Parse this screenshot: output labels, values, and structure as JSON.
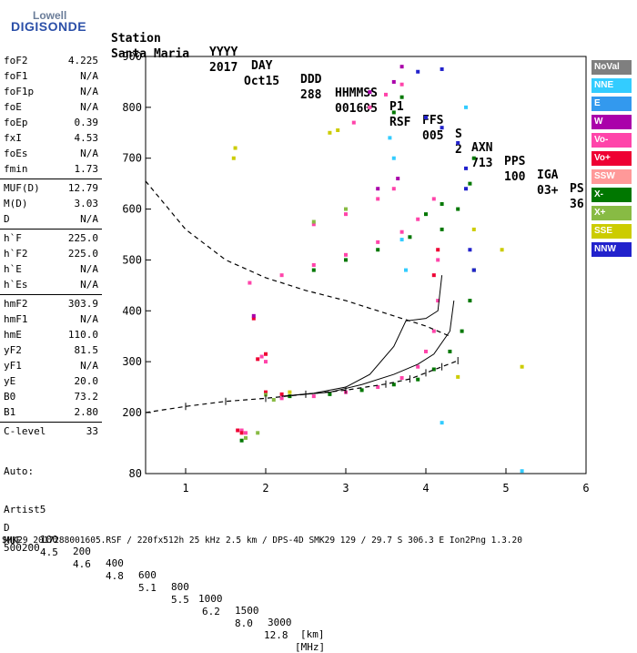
{
  "logo": {
    "top": "Lowell",
    "bottom": "DIGISONDE"
  },
  "header": {
    "row1": [
      "Station",
      "YYYY",
      "DAY",
      "DDD",
      "HHMMSS",
      "P1",
      "FFS",
      "S",
      "AXN",
      "PPS",
      "IGA",
      "PS"
    ],
    "row2": [
      "Santa Maria",
      "2017",
      "Oct15",
      "288",
      "001605",
      "RSF",
      "005",
      "2",
      "713",
      "100",
      "03+",
      "36"
    ]
  },
  "params": [
    {
      "name": "foF2",
      "value": "4.225"
    },
    {
      "name": "foF1",
      "value": "N/A"
    },
    {
      "name": "foF1p",
      "value": "N/A"
    },
    {
      "name": "foE",
      "value": "N/A"
    },
    {
      "name": "foEp",
      "value": "0.39"
    },
    {
      "name": "fxI",
      "value": "4.53"
    },
    {
      "name": "foEs",
      "value": "N/A"
    },
    {
      "name": "fmin",
      "value": "1.73"
    },
    {
      "name": "MUF(D)",
      "value": "12.79"
    },
    {
      "name": "M(D)",
      "value": "3.03"
    },
    {
      "name": "D",
      "value": "N/A"
    },
    {
      "name": "h`F",
      "value": "225.0"
    },
    {
      "name": "h`F2",
      "value": "225.0"
    },
    {
      "name": "h`E",
      "value": "N/A"
    },
    {
      "name": "h`Es",
      "value": "N/A"
    },
    {
      "name": "hmF2",
      "value": "303.9"
    },
    {
      "name": "hmF1",
      "value": "N/A"
    },
    {
      "name": "hmE",
      "value": "110.0"
    },
    {
      "name": "yF2",
      "value": "81.5"
    },
    {
      "name": "yF1",
      "value": "N/A"
    },
    {
      "name": "yE",
      "value": "20.0"
    },
    {
      "name": "B0",
      "value": "73.2"
    },
    {
      "name": "B1",
      "value": "2.80"
    },
    {
      "name": "C-level",
      "value": "33"
    }
  ],
  "autoscaler": {
    "line1": "Auto:",
    "line2": "Artist5",
    "line3": "500200"
  },
  "legend": [
    {
      "label": "NoVal",
      "color": "#7f7f7f"
    },
    {
      "label": "NNE",
      "color": "#33ccff"
    },
    {
      "label": "E",
      "color": "#3399ee"
    },
    {
      "label": "W",
      "color": "#aa00aa"
    },
    {
      "label": "Vo-",
      "color": "#ff44aa"
    },
    {
      "label": "Vo+",
      "color": "#ee0033"
    },
    {
      "label": "SSW",
      "color": "#ff9999"
    },
    {
      "label": "X-",
      "color": "#007700"
    },
    {
      "label": "X+",
      "color": "#88bb44"
    },
    {
      "label": "SSE",
      "color": "#cccc00"
    },
    {
      "label": "NNW",
      "color": "#2222cc"
    }
  ],
  "bottom": {
    "d_label": "D",
    "d_values": [
      "100",
      "200",
      "400",
      "600",
      "800",
      "1000",
      "1500",
      "3000",
      "[km]"
    ],
    "muf_label": "MUF",
    "muf_values": [
      "4.5",
      "4.6",
      "4.8",
      "5.1",
      "5.5",
      "6.2",
      "8.0",
      "12.8",
      "[MHz]"
    ],
    "footer": "SMK29_2017288001605.RSF / 220fx512h 25 kHz 2.5 km / DPS-4D SMK29 129 / 29.7 S 306.3 E Ion2Png 1.3.20"
  },
  "chart_data": {
    "type": "scatter",
    "x_ticks": [
      1,
      2,
      3,
      4,
      5,
      6
    ],
    "y_ticks": [
      80,
      200,
      300,
      400,
      500,
      600,
      700,
      800,
      900
    ],
    "xlim": [
      0.5,
      6.0
    ],
    "ylim": [
      80,
      900
    ],
    "series": [
      {
        "name": "Vo-",
        "color": "#ff44aa",
        "points": [
          [
            1.8,
            455
          ],
          [
            2.2,
            470
          ],
          [
            2.6,
            490
          ],
          [
            3.0,
            510
          ],
          [
            3.4,
            535
          ],
          [
            3.7,
            555
          ],
          [
            3.9,
            580
          ],
          [
            4.1,
            620
          ],
          [
            2.0,
            300
          ],
          [
            1.95,
            310
          ],
          [
            2.2,
            228
          ],
          [
            2.6,
            232
          ],
          [
            3.0,
            240
          ],
          [
            3.4,
            250
          ],
          [
            3.7,
            268
          ],
          [
            3.9,
            290
          ],
          [
            4.0,
            320
          ],
          [
            4.1,
            360
          ],
          [
            4.15,
            420
          ],
          [
            4.15,
            500
          ],
          [
            1.7,
            165
          ],
          [
            1.75,
            160
          ],
          [
            3.1,
            770
          ],
          [
            3.3,
            800
          ],
          [
            3.5,
            825
          ],
          [
            3.7,
            845
          ],
          [
            3.4,
            620
          ],
          [
            3.6,
            640
          ],
          [
            3.0,
            590
          ],
          [
            2.6,
            570
          ]
        ]
      },
      {
        "name": "X-",
        "color": "#007700",
        "points": [
          [
            2.6,
            480
          ],
          [
            3.0,
            500
          ],
          [
            3.4,
            520
          ],
          [
            3.8,
            545
          ],
          [
            4.2,
            560
          ],
          [
            4.4,
            600
          ],
          [
            4.55,
            650
          ],
          [
            4.6,
            700
          ],
          [
            2.3,
            232
          ],
          [
            2.8,
            236
          ],
          [
            3.2,
            244
          ],
          [
            3.6,
            255
          ],
          [
            3.9,
            265
          ],
          [
            4.1,
            285
          ],
          [
            4.3,
            320
          ],
          [
            4.45,
            360
          ],
          [
            4.55,
            420
          ],
          [
            4.6,
            480
          ],
          [
            4.0,
            590
          ],
          [
            4.2,
            610
          ],
          [
            3.6,
            790
          ],
          [
            3.7,
            820
          ],
          [
            1.7,
            145
          ]
        ]
      },
      {
        "name": "Vo+",
        "color": "#ee0033",
        "points": [
          [
            2.0,
            240
          ],
          [
            2.2,
            236
          ],
          [
            1.65,
            165
          ],
          [
            1.7,
            160
          ],
          [
            4.1,
            470
          ],
          [
            4.15,
            520
          ],
          [
            1.9,
            305
          ],
          [
            2.0,
            315
          ],
          [
            1.85,
            385
          ]
        ]
      },
      {
        "name": "X+",
        "color": "#88bb44",
        "points": [
          [
            1.75,
            150
          ],
          [
            1.9,
            160
          ],
          [
            2.1,
            225
          ],
          [
            2.0,
            235
          ],
          [
            2.6,
            575
          ],
          [
            3.0,
            600
          ]
        ]
      },
      {
        "name": "NNW",
        "color": "#2222cc",
        "points": [
          [
            4.55,
            520
          ],
          [
            4.6,
            480
          ],
          [
            4.5,
            640
          ],
          [
            4.5,
            680
          ],
          [
            4.4,
            730
          ],
          [
            4.2,
            760
          ],
          [
            4.0,
            780
          ],
          [
            3.9,
            870
          ],
          [
            4.2,
            875
          ]
        ]
      },
      {
        "name": "W",
        "color": "#aa00aa",
        "points": [
          [
            3.3,
            830
          ],
          [
            3.6,
            850
          ],
          [
            3.7,
            880
          ],
          [
            3.4,
            640
          ],
          [
            3.65,
            660
          ],
          [
            1.85,
            390
          ]
        ]
      },
      {
        "name": "NNE",
        "color": "#33ccff",
        "points": [
          [
            3.7,
            540
          ],
          [
            3.75,
            480
          ],
          [
            3.55,
            740
          ],
          [
            3.6,
            700
          ],
          [
            4.2,
            180
          ],
          [
            5.2,
            85
          ],
          [
            4.5,
            800
          ]
        ]
      },
      {
        "name": "SSE",
        "color": "#cccc00",
        "points": [
          [
            1.6,
            700
          ],
          [
            1.62,
            720
          ],
          [
            2.3,
            240
          ],
          [
            4.4,
            270
          ],
          [
            4.6,
            560
          ],
          [
            4.95,
            520
          ],
          [
            5.2,
            290
          ],
          [
            2.8,
            750
          ],
          [
            2.9,
            755
          ]
        ]
      }
    ],
    "virtual_height_trace": [
      [
        0.5,
        200
      ],
      [
        1.0,
        212
      ],
      [
        1.5,
        222
      ],
      [
        2.0,
        228
      ],
      [
        2.5,
        236
      ],
      [
        3.0,
        244
      ],
      [
        3.5,
        256
      ],
      [
        3.8,
        266
      ],
      [
        4.0,
        278
      ],
      [
        4.2,
        290
      ],
      [
        4.4,
        302
      ]
    ],
    "x_true_height_trace": [
      [
        0.5,
        655
      ],
      [
        1.0,
        560
      ],
      [
        1.5,
        500
      ],
      [
        2.0,
        465
      ],
      [
        2.5,
        440
      ],
      [
        3.0,
        420
      ],
      [
        3.5,
        395
      ],
      [
        4.0,
        370
      ],
      [
        4.3,
        350
      ]
    ],
    "profile_solid_1": [
      [
        2.2,
        232
      ],
      [
        2.6,
        238
      ],
      [
        3.0,
        250
      ],
      [
        3.3,
        275
      ],
      [
        3.6,
        330
      ],
      [
        3.75,
        380
      ],
      [
        4.0,
        385
      ],
      [
        4.15,
        400
      ],
      [
        4.2,
        470
      ]
    ],
    "profile_solid_2": [
      [
        2.2,
        232
      ],
      [
        2.8,
        240
      ],
      [
        3.2,
        255
      ],
      [
        3.6,
        275
      ],
      [
        3.9,
        295
      ],
      [
        4.1,
        315
      ],
      [
        4.3,
        360
      ],
      [
        4.35,
        420
      ]
    ]
  }
}
